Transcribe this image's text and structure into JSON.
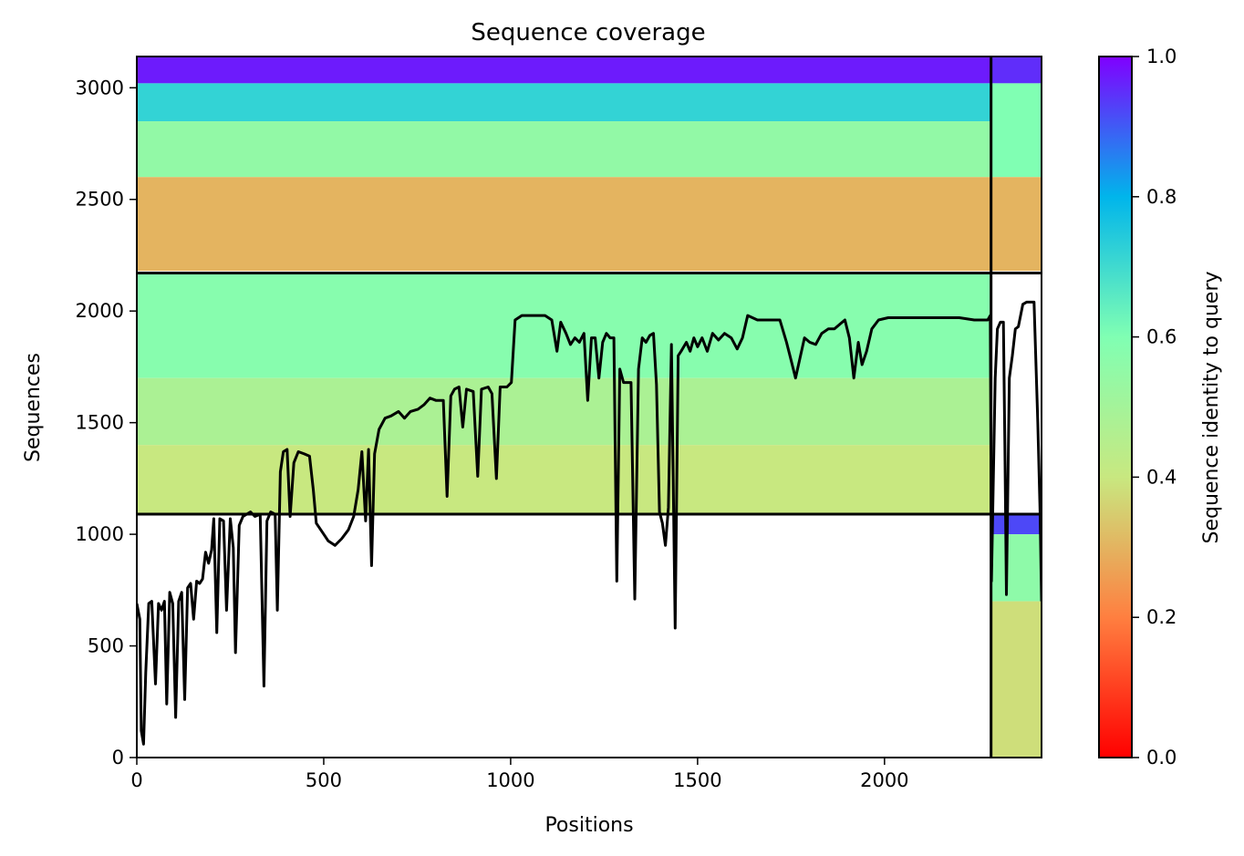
{
  "chart_data": {
    "type": "heatmap",
    "title": "Sequence coverage",
    "xlabel": "Positions",
    "ylabel": "Sequences",
    "xlim": [
      0,
      2420
    ],
    "ylim": [
      0,
      3140
    ],
    "xticks": [
      0,
      500,
      1000,
      1500,
      2000
    ],
    "yticks": [
      0,
      500,
      1000,
      1500,
      2000,
      2500,
      3000
    ],
    "colorbar": {
      "label": "Sequence identity to query",
      "range": [
        0.0,
        1.0
      ],
      "ticks": [
        "0.0",
        "0.2",
        "0.4",
        "0.6",
        "0.8",
        "1.0"
      ],
      "colormap": "rainbow_r",
      "stops": [
        "#ff0000",
        "#ff7f40",
        "#c8e880",
        "#80ffb3",
        "#00b5eb",
        "#8000ff"
      ]
    },
    "dividers": {
      "vertical_positions": [
        2285
      ],
      "horizontal_sequences": [
        2170,
        1090
      ]
    },
    "blocks": [
      {
        "name": "block-upper-main",
        "x_range": [
          0,
          2285
        ],
        "y_range": [
          2170,
          3140
        ],
        "bands": [
          {
            "y": [
              3020,
              3140
            ],
            "identity": 0.97
          },
          {
            "y": [
              2850,
              3020
            ],
            "identity": 0.72
          },
          {
            "y": [
              2600,
              2850
            ],
            "identity": 0.55
          },
          {
            "y": [
              2180,
              2600
            ],
            "identity": 0.3
          }
        ]
      },
      {
        "name": "block-middle-main",
        "x_range": [
          0,
          2285
        ],
        "y_range": [
          1090,
          2170
        ],
        "bands": [
          {
            "y": [
              1700,
              2170
            ],
            "identity": 0.58
          },
          {
            "y": [
              1400,
              1700
            ],
            "identity": 0.48
          },
          {
            "y": [
              1090,
              1400
            ],
            "identity": 0.4
          }
        ]
      },
      {
        "name": "block-lower-right",
        "x_range": [
          2285,
          2420
        ],
        "y_range": [
          0,
          1090
        ],
        "bands": [
          {
            "y": [
              1000,
              1090
            ],
            "identity": 0.92
          },
          {
            "y": [
              700,
              1000
            ],
            "identity": 0.56
          },
          {
            "y": [
              0,
              700
            ],
            "identity": 0.38
          }
        ]
      },
      {
        "name": "block-upper-right",
        "x_range": [
          2285,
          2420
        ],
        "y_range": [
          2170,
          3140
        ],
        "bands": [
          {
            "y": [
              3020,
              3140
            ],
            "identity": 0.95
          },
          {
            "y": [
              2600,
              3020
            ],
            "identity": 0.6
          },
          {
            "y": [
              2180,
              2600
            ],
            "identity": 0.3
          }
        ]
      }
    ],
    "coverage_line": {
      "color": "#000000",
      "points": [
        [
          0,
          690
        ],
        [
          8,
          620
        ],
        [
          12,
          120
        ],
        [
          18,
          60
        ],
        [
          24,
          380
        ],
        [
          32,
          690
        ],
        [
          40,
          700
        ],
        [
          50,
          330
        ],
        [
          58,
          690
        ],
        [
          66,
          660
        ],
        [
          74,
          700
        ],
        [
          80,
          240
        ],
        [
          88,
          740
        ],
        [
          96,
          690
        ],
        [
          104,
          180
        ],
        [
          112,
          700
        ],
        [
          120,
          740
        ],
        [
          128,
          260
        ],
        [
          136,
          760
        ],
        [
          144,
          780
        ],
        [
          152,
          620
        ],
        [
          160,
          790
        ],
        [
          168,
          780
        ],
        [
          176,
          800
        ],
        [
          184,
          920
        ],
        [
          192,
          870
        ],
        [
          200,
          930
        ],
        [
          206,
          1070
        ],
        [
          214,
          560
        ],
        [
          222,
          1070
        ],
        [
          232,
          1060
        ],
        [
          240,
          660
        ],
        [
          250,
          1070
        ],
        [
          258,
          940
        ],
        [
          264,
          470
        ],
        [
          274,
          1040
        ],
        [
          284,
          1080
        ],
        [
          294,
          1090
        ],
        [
          304,
          1100
        ],
        [
          316,
          1080
        ],
        [
          330,
          1090
        ],
        [
          340,
          320
        ],
        [
          348,
          1060
        ],
        [
          358,
          1100
        ],
        [
          370,
          1090
        ],
        [
          376,
          660
        ],
        [
          384,
          1280
        ],
        [
          392,
          1370
        ],
        [
          402,
          1380
        ],
        [
          410,
          1080
        ],
        [
          420,
          1320
        ],
        [
          432,
          1370
        ],
        [
          448,
          1360
        ],
        [
          462,
          1350
        ],
        [
          472,
          1200
        ],
        [
          480,
          1050
        ],
        [
          500,
          1000
        ],
        [
          512,
          970
        ],
        [
          530,
          950
        ],
        [
          548,
          980
        ],
        [
          566,
          1020
        ],
        [
          580,
          1080
        ],
        [
          592,
          1200
        ],
        [
          602,
          1370
        ],
        [
          612,
          1060
        ],
        [
          620,
          1380
        ],
        [
          628,
          860
        ],
        [
          636,
          1360
        ],
        [
          648,
          1470
        ],
        [
          664,
          1520
        ],
        [
          680,
          1530
        ],
        [
          700,
          1550
        ],
        [
          716,
          1520
        ],
        [
          732,
          1550
        ],
        [
          752,
          1560
        ],
        [
          768,
          1580
        ],
        [
          784,
          1610
        ],
        [
          800,
          1600
        ],
        [
          820,
          1600
        ],
        [
          830,
          1170
        ],
        [
          840,
          1620
        ],
        [
          850,
          1650
        ],
        [
          862,
          1660
        ],
        [
          872,
          1480
        ],
        [
          882,
          1650
        ],
        [
          900,
          1640
        ],
        [
          912,
          1260
        ],
        [
          922,
          1650
        ],
        [
          940,
          1660
        ],
        [
          950,
          1630
        ],
        [
          962,
          1250
        ],
        [
          972,
          1660
        ],
        [
          990,
          1660
        ],
        [
          1002,
          1680
        ],
        [
          1012,
          1960
        ],
        [
          1030,
          1980
        ],
        [
          1060,
          1980
        ],
        [
          1092,
          1980
        ],
        [
          1110,
          1960
        ],
        [
          1124,
          1820
        ],
        [
          1134,
          1950
        ],
        [
          1148,
          1900
        ],
        [
          1160,
          1850
        ],
        [
          1172,
          1880
        ],
        [
          1184,
          1860
        ],
        [
          1196,
          1900
        ],
        [
          1206,
          1600
        ],
        [
          1216,
          1880
        ],
        [
          1226,
          1880
        ],
        [
          1236,
          1700
        ],
        [
          1246,
          1860
        ],
        [
          1256,
          1900
        ],
        [
          1266,
          1880
        ],
        [
          1276,
          1880
        ],
        [
          1284,
          790
        ],
        [
          1292,
          1740
        ],
        [
          1302,
          1680
        ],
        [
          1312,
          1680
        ],
        [
          1322,
          1680
        ],
        [
          1332,
          710
        ],
        [
          1342,
          1740
        ],
        [
          1352,
          1880
        ],
        [
          1362,
          1860
        ],
        [
          1372,
          1890
        ],
        [
          1382,
          1900
        ],
        [
          1390,
          1670
        ],
        [
          1398,
          1100
        ],
        [
          1406,
          1050
        ],
        [
          1414,
          950
        ],
        [
          1422,
          1120
        ],
        [
          1430,
          1850
        ],
        [
          1440,
          580
        ],
        [
          1448,
          1800
        ],
        [
          1456,
          1820
        ],
        [
          1470,
          1860
        ],
        [
          1480,
          1820
        ],
        [
          1490,
          1880
        ],
        [
          1500,
          1840
        ],
        [
          1512,
          1880
        ],
        [
          1526,
          1820
        ],
        [
          1540,
          1900
        ],
        [
          1556,
          1870
        ],
        [
          1572,
          1900
        ],
        [
          1590,
          1880
        ],
        [
          1606,
          1830
        ],
        [
          1620,
          1880
        ],
        [
          1634,
          1980
        ],
        [
          1660,
          1960
        ],
        [
          1690,
          1960
        ],
        [
          1720,
          1960
        ],
        [
          1738,
          1860
        ],
        [
          1750,
          1780
        ],
        [
          1762,
          1700
        ],
        [
          1774,
          1790
        ],
        [
          1786,
          1880
        ],
        [
          1800,
          1860
        ],
        [
          1816,
          1850
        ],
        [
          1832,
          1900
        ],
        [
          1850,
          1920
        ],
        [
          1866,
          1920
        ],
        [
          1880,
          1940
        ],
        [
          1894,
          1960
        ],
        [
          1906,
          1880
        ],
        [
          1918,
          1700
        ],
        [
          1930,
          1860
        ],
        [
          1940,
          1760
        ],
        [
          1952,
          1820
        ],
        [
          1966,
          1920
        ],
        [
          1984,
          1960
        ],
        [
          2010,
          1970
        ],
        [
          2040,
          1970
        ],
        [
          2080,
          1970
        ],
        [
          2120,
          1970
        ],
        [
          2160,
          1970
        ],
        [
          2200,
          1970
        ],
        [
          2240,
          1960
        ],
        [
          2276,
          1960
        ],
        [
          2283,
          1980
        ],
        [
          2286,
          790
        ],
        [
          2296,
          1700
        ],
        [
          2302,
          1920
        ],
        [
          2310,
          1950
        ],
        [
          2318,
          1950
        ],
        [
          2322,
          1400
        ],
        [
          2326,
          730
        ],
        [
          2334,
          1700
        ],
        [
          2342,
          1800
        ],
        [
          2350,
          1920
        ],
        [
          2358,
          1930
        ],
        [
          2370,
          2030
        ],
        [
          2380,
          2040
        ],
        [
          2400,
          2040
        ],
        [
          2410,
          1500
        ],
        [
          2416,
          1100
        ],
        [
          2420,
          700
        ]
      ]
    }
  }
}
